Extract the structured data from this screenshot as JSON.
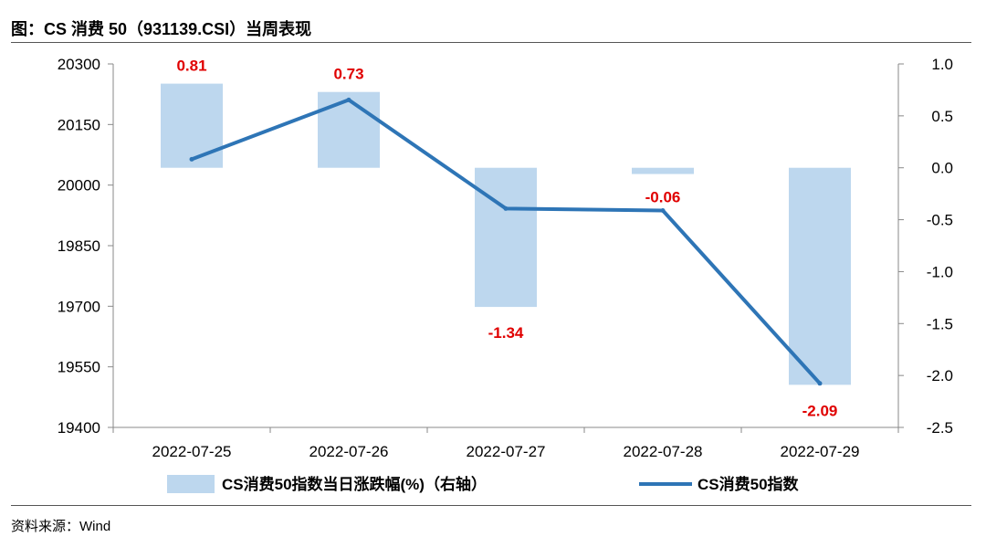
{
  "title": "图：CS 消费 50（931139.CSI）当周表现",
  "source": "资料来源：Wind",
  "chart_data": {
    "type": "bar+line",
    "categories": [
      "2022-07-25",
      "2022-07-26",
      "2022-07-27",
      "2022-07-28",
      "2022-07-29"
    ],
    "series": [
      {
        "name": "CS消费50指数当日涨跌幅(%)（右轴）",
        "type": "bar",
        "axis": "right",
        "values": [
          0.81,
          0.73,
          -1.34,
          -0.06,
          -2.09
        ],
        "labels": [
          "0.81",
          "0.73",
          "-1.34",
          "-0.06",
          "-2.09"
        ],
        "color": "#bdd7ee"
      },
      {
        "name": "CS消费50指数",
        "type": "line",
        "axis": "left",
        "values": [
          20064,
          20211,
          19942,
          19937,
          19509
        ],
        "color": "#2e75b6"
      }
    ],
    "left_axis": {
      "ylim": [
        19400,
        20300
      ],
      "ticks": [
        "20300",
        "20150",
        "20000",
        "19850",
        "19700",
        "19550",
        "19400"
      ]
    },
    "right_axis": {
      "ylim": [
        -2.5,
        1.0
      ],
      "ticks": [
        "1.0",
        "0.5",
        "0.0",
        "-0.5",
        "-1.0",
        "-1.5",
        "-2.0",
        "-2.5"
      ]
    },
    "legend": {
      "bar_label": "CS消费50指数当日涨跌幅(%)（右轴）",
      "line_label": "CS消费50指数",
      "placement": "bottom"
    }
  }
}
